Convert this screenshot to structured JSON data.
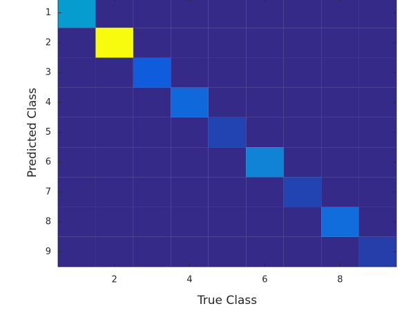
{
  "chart_data": {
    "type": "heatmap",
    "xlabel": "True Class",
    "ylabel": "Predicted Class",
    "x": [
      1,
      2,
      3,
      4,
      5,
      6,
      7,
      8,
      9
    ],
    "y": [
      1,
      2,
      3,
      4,
      5,
      6,
      7,
      8,
      9
    ],
    "values": [
      [
        30,
        0,
        0,
        0,
        0,
        0,
        0,
        0,
        0
      ],
      [
        0,
        100,
        0,
        0,
        0,
        0,
        0,
        0,
        0
      ],
      [
        0,
        0,
        10,
        0,
        0,
        0,
        0,
        0,
        0
      ],
      [
        0,
        0,
        0,
        14,
        0,
        0,
        0,
        0,
        0
      ],
      [
        0,
        0,
        0,
        0,
        5,
        0,
        0,
        0,
        0
      ],
      [
        0,
        0,
        0,
        0,
        0,
        22,
        0,
        0,
        0
      ],
      [
        0,
        0,
        0,
        0,
        0,
        0,
        5,
        0,
        0
      ],
      [
        0,
        0,
        0,
        0,
        0,
        0,
        0,
        15,
        0
      ],
      [
        0,
        0,
        0,
        0,
        0,
        0,
        0,
        0,
        4
      ]
    ],
    "clim": [
      0,
      100
    ],
    "colormap": [
      "#352a87",
      "#0f5cdd",
      "#127dd8",
      "#079ccf",
      "#15b1b4",
      "#59bd8c",
      "#a5be6b",
      "#e1b952",
      "#fcce2e",
      "#f5e31e",
      "#f9fb0e"
    ],
    "xlim": [
      0.5,
      9.5
    ],
    "ylim": [
      9.5,
      0.5
    ],
    "xticks": [
      2,
      4,
      6,
      8
    ],
    "yticks": [
      1,
      2,
      3,
      4,
      5,
      6,
      7,
      8,
      9
    ]
  }
}
